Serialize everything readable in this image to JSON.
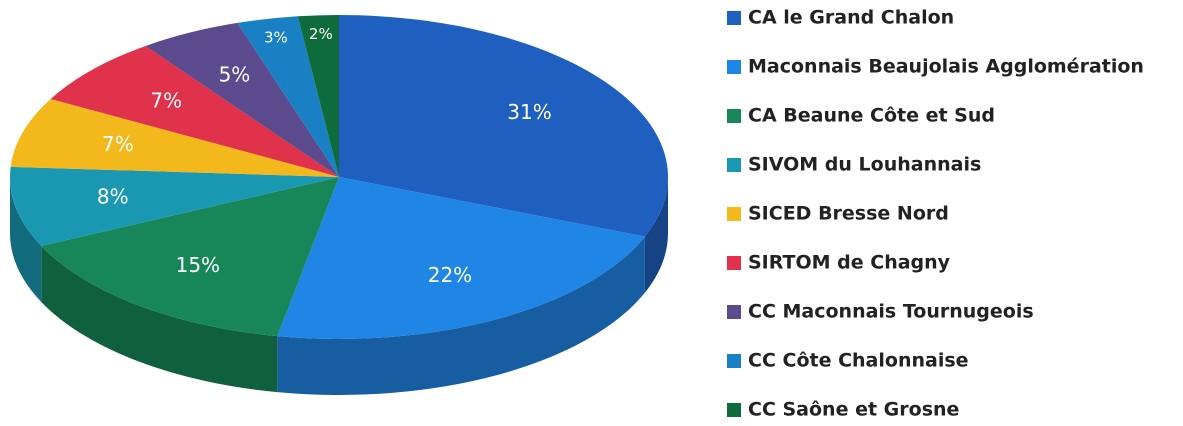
{
  "chart_data": {
    "type": "pie",
    "categories": [
      "CA le Grand Chalon",
      "Maconnais Beaujolais Agglomération",
      "CA Beaune Côte et Sud",
      "SIVOM du Louhannais",
      "SICED Bresse Nord",
      "SIRTOM de Chagny",
      "CC Maconnais Tournugeois",
      "CC Côte Chalonnaise",
      "CC Saône et Grosne"
    ],
    "values": [
      31,
      22,
      15,
      8,
      7,
      7,
      5,
      3,
      2
    ],
    "value_labels": [
      "31%",
      "22%",
      "15%",
      "8%",
      "7%",
      "7%",
      "5%",
      "3%",
      "2%"
    ],
    "colors": [
      "#1f5fbf",
      "#1f86e6",
      "#17875a",
      "#1a98b2",
      "#f2b81c",
      "#e0324a",
      "#5b4b8e",
      "#1a80c4",
      "#0e6b3c"
    ],
    "legend": "right"
  }
}
